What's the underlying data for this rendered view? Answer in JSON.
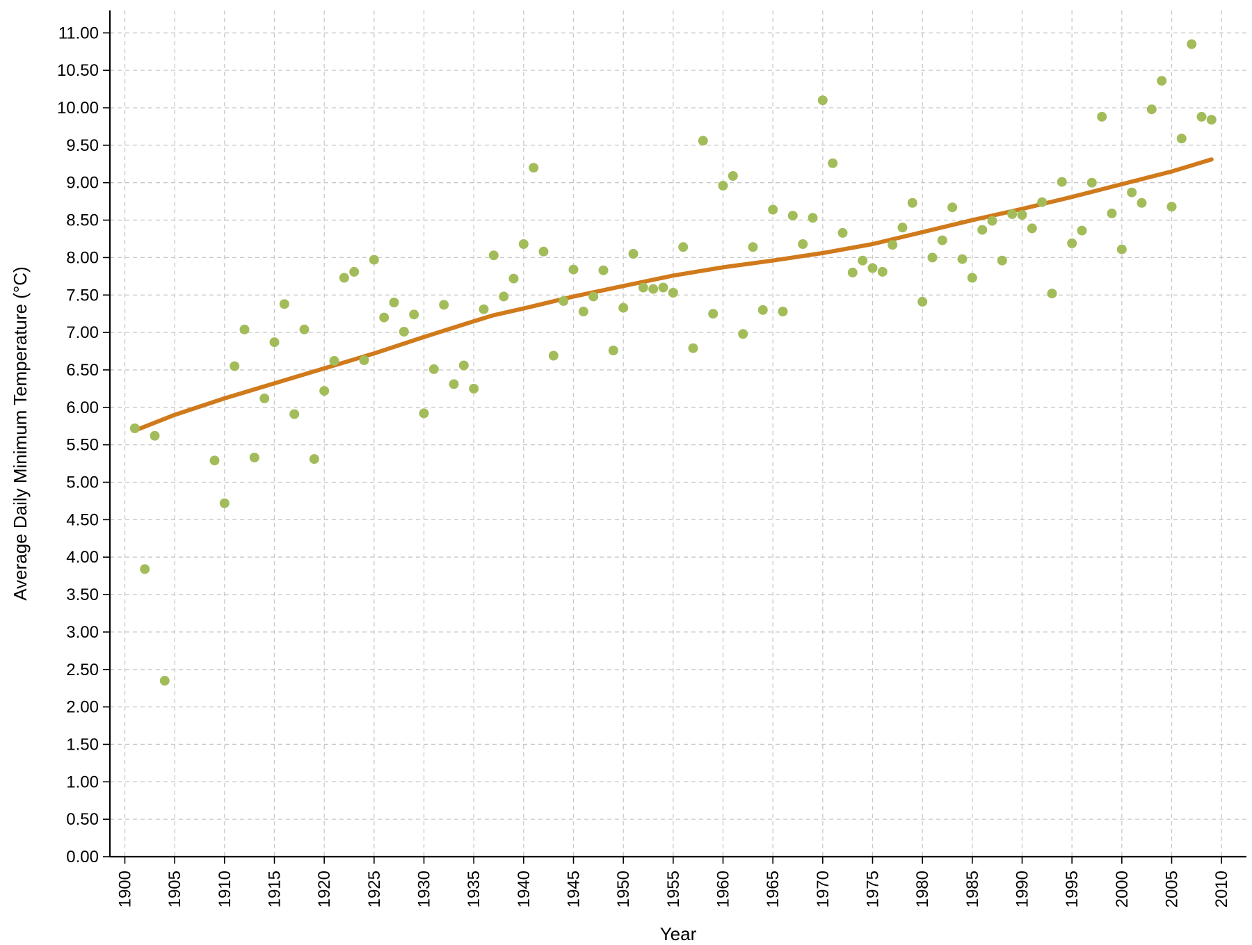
{
  "chart_data": {
    "type": "scatter",
    "xlabel": "Year",
    "ylabel": "Average Daily Minimum Temperature (°C)",
    "xlim": [
      1898.5,
      2012.5
    ],
    "ylim": [
      0,
      11.3
    ],
    "xticks": [
      1900,
      1905,
      1910,
      1915,
      1920,
      1925,
      1930,
      1935,
      1940,
      1945,
      1950,
      1955,
      1960,
      1965,
      1970,
      1975,
      1980,
      1985,
      1990,
      1995,
      2000,
      2005,
      2010
    ],
    "yticks": [
      "0.00",
      "0.50",
      "1.00",
      "1.50",
      "2.00",
      "2.50",
      "3.00",
      "3.50",
      "4.00",
      "4.50",
      "5.00",
      "5.50",
      "6.00",
      "6.50",
      "7.00",
      "7.50",
      "8.00",
      "8.50",
      "9.00",
      "9.50",
      "10.00",
      "10.50",
      "11.00"
    ],
    "grid": true,
    "colors": {
      "points": "#a3bc5a",
      "trend": "#d07a1c"
    },
    "series": [
      {
        "type": "scatter",
        "points": [
          [
            1901,
            5.72
          ],
          [
            1902,
            3.84
          ],
          [
            1903,
            5.62
          ],
          [
            1904,
            2.35
          ],
          [
            1909,
            5.29
          ],
          [
            1910,
            4.72
          ],
          [
            1911,
            6.55
          ],
          [
            1912,
            7.04
          ],
          [
            1913,
            5.33
          ],
          [
            1914,
            6.12
          ],
          [
            1915,
            6.87
          ],
          [
            1916,
            7.38
          ],
          [
            1917,
            5.91
          ],
          [
            1918,
            7.04
          ],
          [
            1919,
            5.31
          ],
          [
            1920,
            6.22
          ],
          [
            1921,
            6.62
          ],
          [
            1922,
            7.73
          ],
          [
            1923,
            7.81
          ],
          [
            1924,
            6.63
          ],
          [
            1925,
            7.97
          ],
          [
            1926,
            7.2
          ],
          [
            1927,
            7.4
          ],
          [
            1928,
            7.01
          ],
          [
            1929,
            7.24
          ],
          [
            1930,
            5.92
          ],
          [
            1931,
            6.51
          ],
          [
            1932,
            7.37
          ],
          [
            1933,
            6.31
          ],
          [
            1934,
            6.56
          ],
          [
            1935,
            6.25
          ],
          [
            1936,
            7.31
          ],
          [
            1937,
            8.03
          ],
          [
            1938,
            7.48
          ],
          [
            1939,
            7.72
          ],
          [
            1940,
            8.18
          ],
          [
            1941,
            9.2
          ],
          [
            1942,
            8.08
          ],
          [
            1943,
            6.69
          ],
          [
            1944,
            7.42
          ],
          [
            1945,
            7.84
          ],
          [
            1946,
            7.28
          ],
          [
            1947,
            7.48
          ],
          [
            1948,
            7.83
          ],
          [
            1949,
            6.76
          ],
          [
            1950,
            7.33
          ],
          [
            1951,
            8.05
          ],
          [
            1952,
            7.6
          ],
          [
            1953,
            7.58
          ],
          [
            1954,
            7.6
          ],
          [
            1955,
            7.53
          ],
          [
            1956,
            8.14
          ],
          [
            1957,
            6.79
          ],
          [
            1958,
            9.56
          ],
          [
            1959,
            7.25
          ],
          [
            1960,
            8.96
          ],
          [
            1961,
            9.09
          ],
          [
            1962,
            6.98
          ],
          [
            1963,
            8.14
          ],
          [
            1964,
            7.3
          ],
          [
            1965,
            8.64
          ],
          [
            1966,
            7.28
          ],
          [
            1967,
            8.56
          ],
          [
            1968,
            8.18
          ],
          [
            1969,
            8.53
          ],
          [
            1970,
            10.1
          ],
          [
            1971,
            9.26
          ],
          [
            1972,
            8.33
          ],
          [
            1973,
            7.8
          ],
          [
            1974,
            7.96
          ],
          [
            1975,
            7.86
          ],
          [
            1976,
            7.81
          ],
          [
            1977,
            8.17
          ],
          [
            1978,
            8.4
          ],
          [
            1979,
            8.73
          ],
          [
            1980,
            7.41
          ],
          [
            1981,
            8.0
          ],
          [
            1982,
            8.23
          ],
          [
            1983,
            8.67
          ],
          [
            1984,
            7.98
          ],
          [
            1985,
            7.73
          ],
          [
            1986,
            8.37
          ],
          [
            1987,
            8.49
          ],
          [
            1988,
            7.96
          ],
          [
            1989,
            8.58
          ],
          [
            1990,
            8.57
          ],
          [
            1991,
            8.39
          ],
          [
            1992,
            8.74
          ],
          [
            1993,
            7.52
          ],
          [
            1994,
            9.01
          ],
          [
            1995,
            8.19
          ],
          [
            1996,
            8.36
          ],
          [
            1997,
            9.0
          ],
          [
            1998,
            9.88
          ],
          [
            1999,
            8.59
          ],
          [
            2000,
            8.11
          ],
          [
            2001,
            8.87
          ],
          [
            2002,
            8.73
          ],
          [
            2003,
            9.98
          ],
          [
            2004,
            10.36
          ],
          [
            2005,
            8.68
          ],
          [
            2006,
            9.59
          ],
          [
            2007,
            10.85
          ],
          [
            2008,
            9.88
          ],
          [
            2009,
            9.84
          ]
        ]
      },
      {
        "type": "line",
        "points": [
          [
            1901,
            5.69
          ],
          [
            1905,
            5.9
          ],
          [
            1910,
            6.12
          ],
          [
            1915,
            6.32
          ],
          [
            1920,
            6.52
          ],
          [
            1925,
            6.72
          ],
          [
            1930,
            6.94
          ],
          [
            1935,
            7.15
          ],
          [
            1937,
            7.23
          ],
          [
            1940,
            7.32
          ],
          [
            1945,
            7.48
          ],
          [
            1950,
            7.62
          ],
          [
            1955,
            7.76
          ],
          [
            1960,
            7.87
          ],
          [
            1965,
            7.96
          ],
          [
            1970,
            8.06
          ],
          [
            1975,
            8.18
          ],
          [
            1980,
            8.34
          ],
          [
            1985,
            8.5
          ],
          [
            1990,
            8.65
          ],
          [
            1995,
            8.81
          ],
          [
            2000,
            8.98
          ],
          [
            2005,
            9.15
          ],
          [
            2009,
            9.31
          ]
        ]
      }
    ]
  }
}
